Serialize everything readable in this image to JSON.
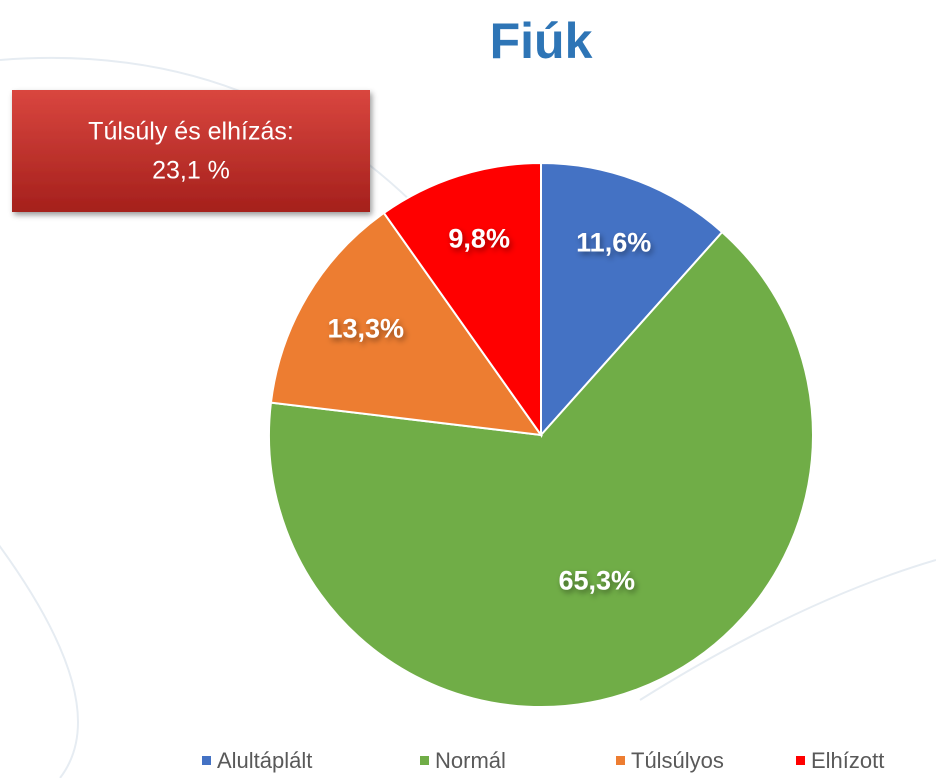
{
  "chart_data": {
    "type": "pie",
    "title": "Fiúk",
    "annotation": [
      "Túlsúly és elhízás:",
      "23,1 %"
    ],
    "categories": [
      "Alultáplált",
      "Normál",
      "Túlsúlyos",
      "Elhízott"
    ],
    "values": [
      11.6,
      65.3,
      13.3,
      9.8
    ],
    "value_labels": [
      "11,6%",
      "65,3%",
      "13,3%",
      "9,8%"
    ],
    "colors": [
      "#4472c4",
      "#70ad47",
      "#ed7d31",
      "#ff0000"
    ],
    "legend": "bottom"
  }
}
